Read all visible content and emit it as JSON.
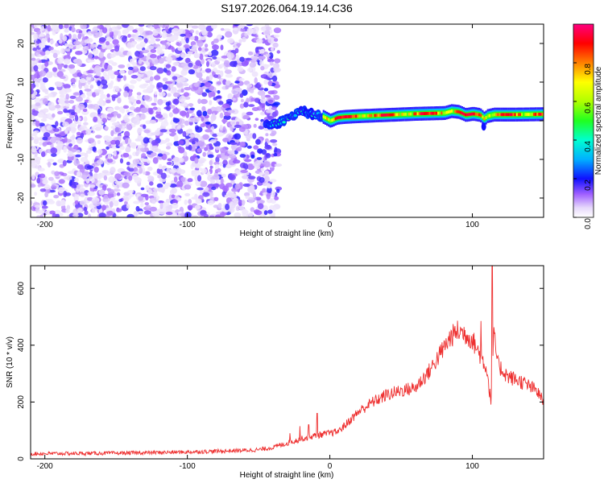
{
  "chart_data": [
    {
      "type": "heatmap",
      "title": "S197.2026.064.19.14.C36",
      "xlabel": "Height of straight line (km)",
      "ylabel": "Frequency (Hz)",
      "xlim": [
        -210,
        150
      ],
      "ylim": [
        -25,
        25
      ],
      "xticks": [
        -200,
        -100,
        0,
        100
      ],
      "yticks": [
        -20,
        -10,
        0,
        10,
        20
      ],
      "colorbar": {
        "label": "Normalized spectral amplitude",
        "range": [
          0,
          1
        ],
        "ticks": [
          0.0,
          0.2,
          0.4,
          0.6,
          0.8
        ]
      },
      "regions": [
        {
          "name": "scattered noise",
          "x_range": [
            -210,
            -40
          ],
          "y_range": [
            -25,
            25
          ],
          "amplitude": [
            0.0,
            0.15
          ]
        },
        {
          "name": "onset wiggle",
          "x_range": [
            -40,
            0
          ],
          "center_freq_hz": [
            -1.5,
            3
          ],
          "amplitude": [
            0.1,
            0.35
          ]
        },
        {
          "name": "narrow band",
          "x_range": [
            0,
            150
          ],
          "center_freq_hz": [
            1,
            3
          ],
          "amplitude": [
            0.3,
            1.0
          ]
        }
      ],
      "band_center": {
        "x": [
          -60,
          -50,
          -40,
          -35,
          -30,
          -25,
          -20,
          -15,
          -10,
          -5,
          0,
          5,
          10,
          20,
          40,
          60,
          80,
          85,
          90,
          95,
          100,
          105,
          108,
          110,
          115,
          130,
          150
        ],
        "freq": [
          -2,
          -1.5,
          -1,
          -0.5,
          0.5,
          1.5,
          2.5,
          2,
          1.5,
          1,
          0,
          0.8,
          1,
          1.2,
          1.5,
          1.8,
          2,
          2.5,
          2.3,
          1.5,
          1.8,
          1.5,
          0.5,
          1.2,
          1.6,
          1.6,
          1.7
        ]
      }
    },
    {
      "type": "line",
      "title": "",
      "xlabel": "Height of straight line (km)",
      "ylabel": "SNR (10 * v/v)",
      "xlim": [
        -210,
        150
      ],
      "ylim": [
        0,
        680
      ],
      "xticks": [
        -200,
        -100,
        0,
        100
      ],
      "yticks": [
        0,
        200,
        400,
        600
      ],
      "color": "#ee3030",
      "series": [
        {
          "name": "SNR",
          "x": [
            -210,
            -150,
            -100,
            -70,
            -50,
            -40,
            -30,
            -20,
            -10,
            0,
            5,
            10,
            20,
            30,
            40,
            50,
            60,
            70,
            80,
            85,
            90,
            95,
            100,
            105,
            110,
            113,
            115,
            118,
            125,
            135,
            145,
            150
          ],
          "y": [
            18,
            20,
            24,
            28,
            32,
            40,
            55,
            70,
            82,
            90,
            95,
            115,
            165,
            200,
            225,
            240,
            250,
            310,
            390,
            430,
            450,
            440,
            420,
            370,
            320,
            200,
            440,
            330,
            290,
            270,
            240,
            200
          ]
        }
      ],
      "spikes": [
        {
          "x": -28,
          "y": 90
        },
        {
          "x": -21,
          "y": 115
        },
        {
          "x": -15,
          "y": 120
        },
        {
          "x": -9,
          "y": 160
        },
        {
          "x": 7,
          "y": 110
        },
        {
          "x": 106,
          "y": 485
        },
        {
          "x": 114,
          "y": 680
        }
      ]
    }
  ]
}
